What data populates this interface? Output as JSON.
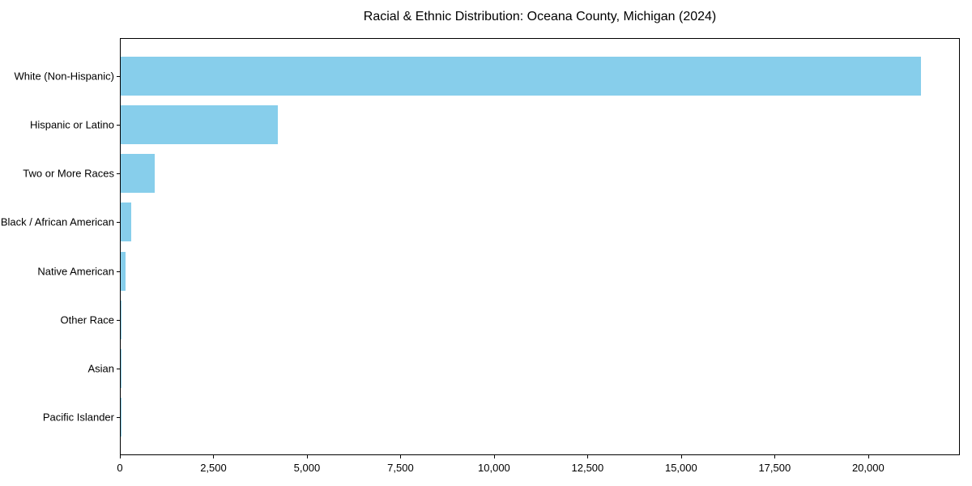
{
  "chart_data": {
    "type": "bar",
    "orientation": "horizontal",
    "title": "Racial & Ethnic Distribution: Oceana County, Michigan (2024)",
    "categories": [
      "White (Non-Hispanic)",
      "Hispanic or Latino",
      "Two or More Races",
      "Black / African American",
      "Native American",
      "Other Race",
      "Asian",
      "Pacific Islander"
    ],
    "values": [
      21390,
      4200,
      910,
      290,
      130,
      30,
      30,
      10
    ],
    "xlabel": "",
    "ylabel": "",
    "xlim": [
      0,
      22450
    ],
    "xticks": [
      0,
      2500,
      5000,
      7500,
      10000,
      12500,
      15000,
      17500,
      20000
    ],
    "xtick_labels": [
      "0",
      "2,500",
      "5,000",
      "7,500",
      "10,000",
      "12,500",
      "15,000",
      "17,500",
      "20,000"
    ],
    "bar_color": "#87CEEB",
    "axis_color": "#000000",
    "grid": false,
    "legend": null
  }
}
